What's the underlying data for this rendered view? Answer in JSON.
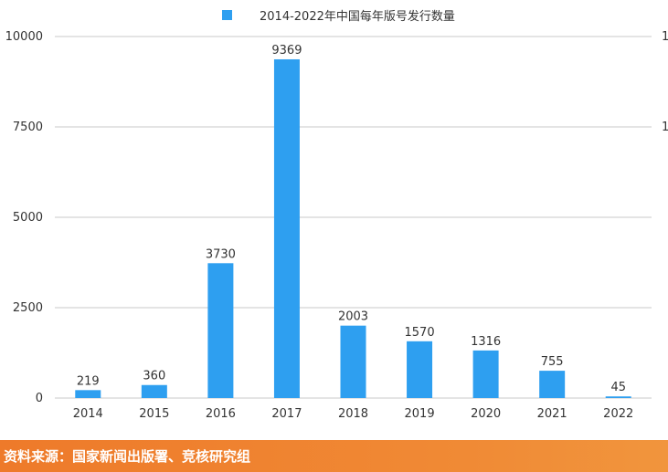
{
  "chart_data": {
    "type": "bar",
    "title": "",
    "xlabel": "",
    "ylabel": "",
    "legend": {
      "position": "top",
      "entries": [
        "2014-2022年中国每年版号发行数量"
      ]
    },
    "categories": [
      "2014",
      "2015",
      "2016",
      "2017",
      "2018",
      "2019",
      "2020",
      "2021",
      "2022"
    ],
    "series": [
      {
        "name": "2014-2022年中国每年版号发行数量",
        "color": "#2e9ff0",
        "values": [
          219,
          360,
          3730,
          9369,
          2003,
          1570,
          1316,
          755,
          45
        ]
      }
    ],
    "ylim": [
      0,
      10000
    ],
    "yticks": [
      0,
      2500,
      5000,
      7500,
      10000
    ],
    "grid": true,
    "data_labels": true,
    "right_axis_tick_labels_partial": [
      "1",
      "1"
    ]
  },
  "footer": {
    "source_text": "资料来源：国家新闻出版署、竞核研究组"
  }
}
